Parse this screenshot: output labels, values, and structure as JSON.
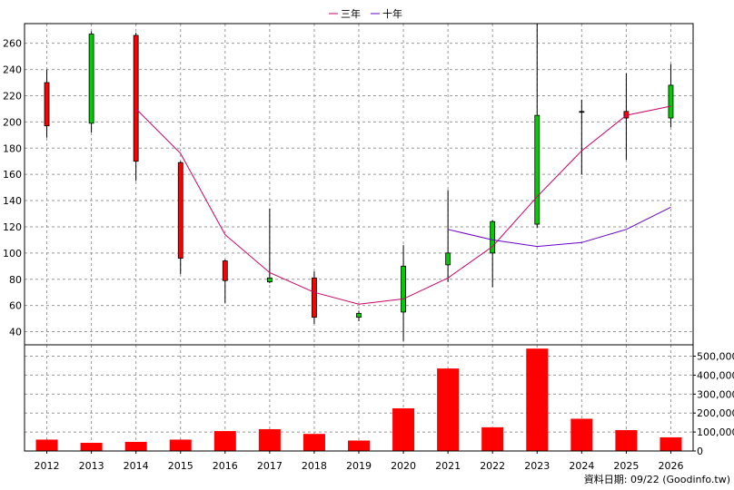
{
  "chart_data": {
    "type": "candlestick",
    "legend": {
      "placement": "top-center",
      "entries": [
        {
          "label": "三年",
          "color": "#cc0066"
        },
        {
          "label": "十年",
          "color": "#6600cc"
        }
      ]
    },
    "x": [
      "2012",
      "2013",
      "2014",
      "2015",
      "2016",
      "2017",
      "2018",
      "2019",
      "2020",
      "2021",
      "2022",
      "2023",
      "2024",
      "2025",
      "2026"
    ],
    "price_axis": {
      "ylim": [
        30,
        275
      ],
      "ticks": [
        "40",
        "60",
        "80",
        "100",
        "120",
        "140",
        "160",
        "180",
        "200",
        "220",
        "240",
        "260"
      ],
      "grid": true,
      "side": "left"
    },
    "candles": [
      {
        "year": "2012",
        "open": 197,
        "close": 230,
        "high": 240,
        "low": 188
      },
      {
        "year": "2013",
        "open": 267,
        "close": 199,
        "high": 269,
        "low": 192
      },
      {
        "year": "2014",
        "open": 170,
        "close": 266,
        "high": 268,
        "low": 155
      },
      {
        "year": "2015",
        "open": 96,
        "close": 169,
        "high": 170,
        "low": 84
      },
      {
        "year": "2016",
        "open": 79,
        "close": 94,
        "high": 95,
        "low": 62
      },
      {
        "year": "2017",
        "open": 81,
        "close": 78,
        "high": 134,
        "low": 77
      },
      {
        "year": "2018",
        "open": 51,
        "close": 81,
        "high": 86,
        "low": 46
      },
      {
        "year": "2019",
        "open": 54,
        "close": 51,
        "high": 56,
        "low": 48
      },
      {
        "year": "2020",
        "open": 90,
        "close": 55,
        "high": 106,
        "low": 33
      },
      {
        "year": "2021",
        "open": 100,
        "close": 91,
        "high": 148,
        "low": 78
      },
      {
        "year": "2022",
        "open": 124,
        "close": 100,
        "high": 125,
        "low": 74
      },
      {
        "year": "2023",
        "open": 205,
        "close": 122,
        "high": 275,
        "low": 119
      },
      {
        "year": "2024",
        "open": 208,
        "close": 208,
        "high": 217,
        "low": 160
      },
      {
        "year": "2025",
        "open": 203,
        "close": 208,
        "high": 237,
        "low": 171
      },
      {
        "year": "2026",
        "open": 228,
        "close": 203,
        "high": 244,
        "low": 196
      }
    ],
    "series": [
      {
        "name": "三年",
        "color": "#cc0066",
        "x": [
          "2014",
          "2015",
          "2016",
          "2017",
          "2018",
          "2019",
          "2020",
          "2021",
          "2022",
          "2023",
          "2024",
          "2025",
          "2026"
        ],
        "values": [
          210,
          176,
          114,
          85,
          70,
          61,
          65,
          81,
          105,
          143,
          178,
          205,
          212
        ]
      },
      {
        "name": "十年",
        "color": "#6600cc",
        "x": [
          "2021",
          "2022",
          "2023",
          "2024",
          "2025",
          "2026"
        ],
        "values": [
          118,
          110,
          105,
          108,
          118,
          135
        ]
      }
    ],
    "volume": {
      "color": "#ff0000",
      "ylim": [
        0,
        560000
      ],
      "ticks": [
        "0",
        "100,000",
        "200,000",
        "300,000",
        "400,000",
        "500,000"
      ],
      "side": "right",
      "values": [
        60000,
        43000,
        48000,
        60000,
        105000,
        115000,
        90000,
        55000,
        225000,
        435000,
        125000,
        540000,
        170000,
        110000,
        72000
      ]
    },
    "footer": "資料日期: 09/22 (Goodinfo.tw)"
  }
}
